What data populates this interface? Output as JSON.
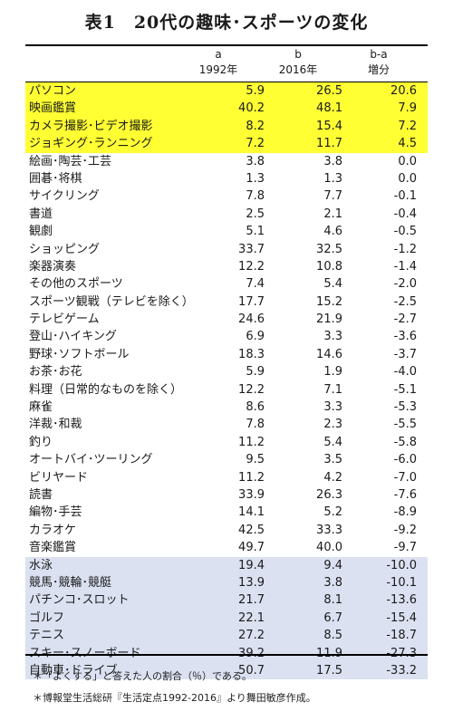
{
  "title": "表1　20代の趣味･スポーツの変化",
  "columns": [
    {
      "line1": "a",
      "line2": "1992年"
    },
    {
      "line1": "b",
      "line2": "2016年"
    },
    {
      "line1": "b-a",
      "line2": "増分"
    }
  ],
  "rows": [
    {
      "name": "パソコン",
      "a": "5.9",
      "b": "26.5",
      "diff": "20.6",
      "highlight": "yellow"
    },
    {
      "name": "映画鑑賞",
      "a": "40.2",
      "b": "48.1",
      "diff": "7.9",
      "highlight": "yellow"
    },
    {
      "name": "カメラ撮影･ビデオ撮影",
      "a": "8.2",
      "b": "15.4",
      "diff": "7.2",
      "highlight": "yellow"
    },
    {
      "name": "ジョギング･ランニング",
      "a": "7.2",
      "b": "11.7",
      "diff": "4.5",
      "highlight": "yellow"
    },
    {
      "name": "絵画･陶芸･工芸",
      "a": "3.8",
      "b": "3.8",
      "diff": "0.0",
      "highlight": "none"
    },
    {
      "name": "囲碁･将棋",
      "a": "1.3",
      "b": "1.3",
      "diff": "0.0",
      "highlight": "none"
    },
    {
      "name": "サイクリング",
      "a": "7.8",
      "b": "7.7",
      "diff": "-0.1",
      "highlight": "none"
    },
    {
      "name": "書道",
      "a": "2.5",
      "b": "2.1",
      "diff": "-0.4",
      "highlight": "none"
    },
    {
      "name": "観劇",
      "a": "5.1",
      "b": "4.6",
      "diff": "-0.5",
      "highlight": "none"
    },
    {
      "name": "ショッピング",
      "a": "33.7",
      "b": "32.5",
      "diff": "-1.2",
      "highlight": "none"
    },
    {
      "name": "楽器演奏",
      "a": "12.2",
      "b": "10.8",
      "diff": "-1.4",
      "highlight": "none"
    },
    {
      "name": "その他のスポーツ",
      "a": "7.4",
      "b": "5.4",
      "diff": "-2.0",
      "highlight": "none"
    },
    {
      "name": "スポーツ観戦（テレビを除く）",
      "a": "17.7",
      "b": "15.2",
      "diff": "-2.5",
      "highlight": "none"
    },
    {
      "name": "テレビゲーム",
      "a": "24.6",
      "b": "21.9",
      "diff": "-2.7",
      "highlight": "none"
    },
    {
      "name": "登山･ハイキング",
      "a": "6.9",
      "b": "3.3",
      "diff": "-3.6",
      "highlight": "none"
    },
    {
      "name": "野球･ソフトボール",
      "a": "18.3",
      "b": "14.6",
      "diff": "-3.7",
      "highlight": "none"
    },
    {
      "name": "お茶･お花",
      "a": "5.9",
      "b": "1.9",
      "diff": "-4.0",
      "highlight": "none"
    },
    {
      "name": "料理（日常的なものを除く）",
      "a": "12.2",
      "b": "7.1",
      "diff": "-5.1",
      "highlight": "none"
    },
    {
      "name": "麻雀",
      "a": "8.6",
      "b": "3.3",
      "diff": "-5.3",
      "highlight": "none"
    },
    {
      "name": "洋裁･和裁",
      "a": "7.8",
      "b": "2.3",
      "diff": "-5.5",
      "highlight": "none"
    },
    {
      "name": "釣り",
      "a": "11.2",
      "b": "5.4",
      "diff": "-5.8",
      "highlight": "none"
    },
    {
      "name": "オートバイ･ツーリング",
      "a": "9.5",
      "b": "3.5",
      "diff": "-6.0",
      "highlight": "none"
    },
    {
      "name": "ビリヤード",
      "a": "11.2",
      "b": "4.2",
      "diff": "-7.0",
      "highlight": "none"
    },
    {
      "name": "読書",
      "a": "33.9",
      "b": "26.3",
      "diff": "-7.6",
      "highlight": "none"
    },
    {
      "name": "編物･手芸",
      "a": "14.1",
      "b": "5.2",
      "diff": "-8.9",
      "highlight": "none"
    },
    {
      "name": "カラオケ",
      "a": "42.5",
      "b": "33.3",
      "diff": "-9.2",
      "highlight": "none"
    },
    {
      "name": "音楽鑑賞",
      "a": "49.7",
      "b": "40.0",
      "diff": "-9.7",
      "highlight": "none"
    },
    {
      "name": "水泳",
      "a": "19.4",
      "b": "9.4",
      "diff": "-10.0",
      "highlight": "blue"
    },
    {
      "name": "競馬･競輪･競艇",
      "a": "13.9",
      "b": "3.8",
      "diff": "-10.1",
      "highlight": "blue"
    },
    {
      "name": "パチンコ･スロット",
      "a": "21.7",
      "b": "8.1",
      "diff": "-13.6",
      "highlight": "blue"
    },
    {
      "name": "ゴルフ",
      "a": "22.1",
      "b": "6.7",
      "diff": "-15.4",
      "highlight": "blue"
    },
    {
      "name": "テニス",
      "a": "27.2",
      "b": "8.5",
      "diff": "-18.7",
      "highlight": "blue"
    },
    {
      "name": "スキー･スノーボード",
      "a": "39.2",
      "b": "11.9",
      "diff": "-27.3",
      "highlight": "blue"
    },
    {
      "name": "自動車･ドライブ",
      "a": "50.7",
      "b": "17.5",
      "diff": "-33.2",
      "highlight": "blue"
    }
  ],
  "notes": [
    "＊「よくする」と答えた人の割合（％）である。",
    "＊博報堂生活総研『生活定点1992-2016』より舞田敏彦作成。"
  ],
  "colors": {
    "yellow": "#ffff33",
    "blue": "#dbe1f1"
  }
}
